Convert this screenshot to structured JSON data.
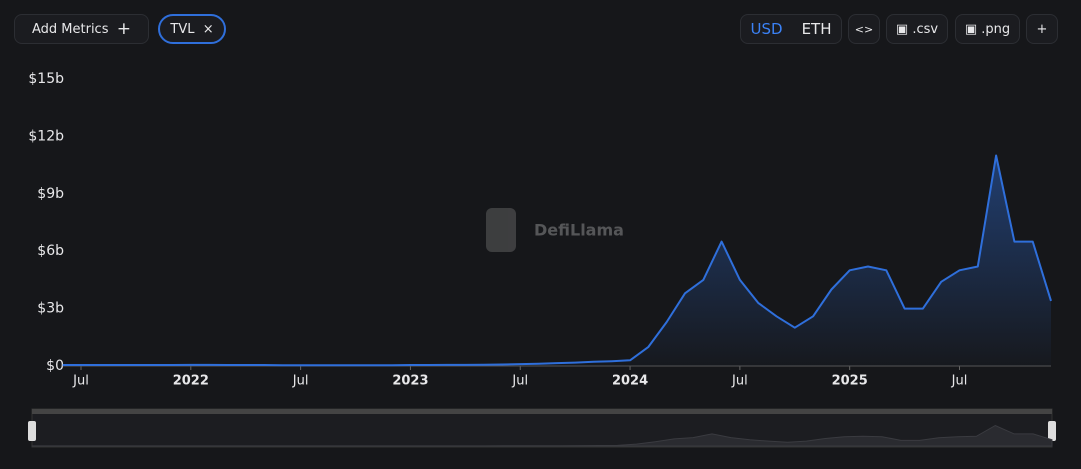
{
  "ui": {
    "add_metrics": "Add Metrics",
    "plus": "+",
    "metric_chip": "TVL",
    "chip_close": "×",
    "usd": "USD",
    "eth": "ETH",
    "embed": "<>",
    "csv": ".csv",
    "png": ".png",
    "more": "+",
    "watermark": "DefiLlama"
  },
  "chart_data": {
    "type": "line",
    "x": [
      "2021-06",
      "2021-07",
      "2021-08",
      "2021-09",
      "2021-10",
      "2021-11",
      "2021-12",
      "2022-01",
      "2022-02",
      "2022-03",
      "2022-04",
      "2022-05",
      "2022-06",
      "2022-07",
      "2022-08",
      "2022-09",
      "2022-10",
      "2022-11",
      "2022-12",
      "2023-01",
      "2023-02",
      "2023-03",
      "2023-04",
      "2023-05",
      "2023-06",
      "2023-07",
      "2023-08",
      "2023-09",
      "2023-10",
      "2023-11",
      "2023-12",
      "2024-01",
      "2024-02",
      "2024-03",
      "2024-04",
      "2024-05",
      "2024-06",
      "2024-07",
      "2024-08",
      "2024-09",
      "2024-10",
      "2024-11",
      "2024-12",
      "2025-01",
      "2025-02",
      "2025-03",
      "2025-04",
      "2025-05",
      "2025-06",
      "2025-07",
      "2025-08",
      "2025-09",
      "2025-10",
      "2025-11",
      "2025-12"
    ],
    "series": [
      {
        "name": "TVL",
        "color": "#2f6fdb",
        "values": [
          0.05,
          0.05,
          0.05,
          0.05,
          0.05,
          0.05,
          0.05,
          0.06,
          0.06,
          0.05,
          0.05,
          0.05,
          0.04,
          0.04,
          0.04,
          0.04,
          0.04,
          0.04,
          0.04,
          0.05,
          0.05,
          0.06,
          0.06,
          0.07,
          0.08,
          0.1,
          0.12,
          0.15,
          0.18,
          0.22,
          0.25,
          0.3,
          1.0,
          2.3,
          3.8,
          4.5,
          6.5,
          4.5,
          3.3,
          2.6,
          2.0,
          2.6,
          4.0,
          5.0,
          5.2,
          5.0,
          3.0,
          3.0,
          4.4,
          5.0,
          5.2,
          11.0,
          6.5,
          6.5,
          3.4
        ]
      }
    ],
    "xlim": [
      "2021-06",
      "2025-12"
    ],
    "xticks": [
      {
        "value": "2021-07",
        "label": "Jul"
      },
      {
        "value": "2022-01",
        "label": "2022"
      },
      {
        "value": "2022-07",
        "label": "Jul"
      },
      {
        "value": "2023-01",
        "label": "2023"
      },
      {
        "value": "2023-07",
        "label": "Jul"
      },
      {
        "value": "2024-01",
        "label": "2024"
      },
      {
        "value": "2024-07",
        "label": "Jul"
      },
      {
        "value": "2025-01",
        "label": "2025"
      },
      {
        "value": "2025-07",
        "label": "Jul"
      }
    ],
    "ylim": [
      0,
      15
    ],
    "yticks": [
      {
        "value": 0,
        "label": "$0"
      },
      {
        "value": 3,
        "label": "$3b"
      },
      {
        "value": 6,
        "label": "$6b"
      },
      {
        "value": 9,
        "label": "$9b"
      },
      {
        "value": 12,
        "label": "$12b"
      },
      {
        "value": 15,
        "label": "$15b"
      }
    ]
  }
}
